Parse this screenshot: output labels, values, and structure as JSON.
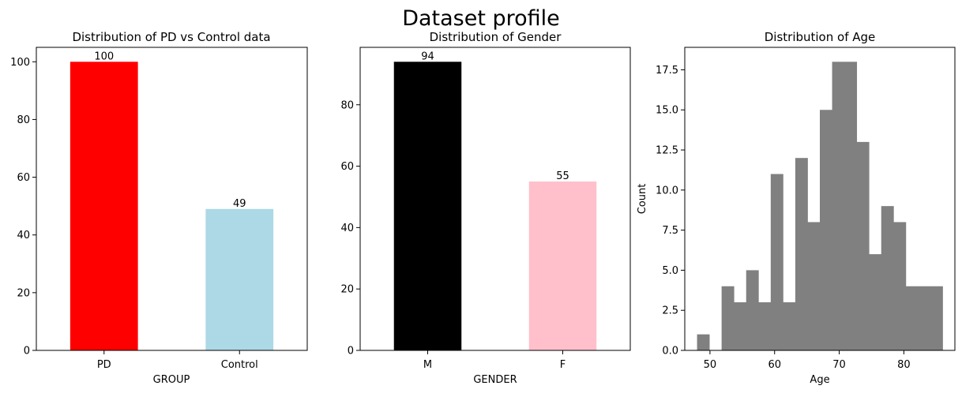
{
  "suptitle": "Dataset profile",
  "chart_data": [
    {
      "type": "bar",
      "title": "Distribution of PD vs Control data",
      "xlabel": "GROUP",
      "ylabel": "",
      "categories": [
        "PD",
        "Control"
      ],
      "values": [
        100,
        49
      ],
      "colors": [
        "#ff0000",
        "#add8e6"
      ],
      "data_labels": [
        "100",
        "49"
      ],
      "ylim": [
        0,
        105
      ],
      "yticks": [
        0,
        20,
        40,
        60,
        80,
        100
      ],
      "grid": false,
      "legend": "none"
    },
    {
      "type": "bar",
      "title": "Distribution of Gender",
      "xlabel": "GENDER",
      "ylabel": "",
      "categories": [
        "M",
        "F"
      ],
      "values": [
        94,
        55
      ],
      "colors": [
        "#000000",
        "#ffc0cb"
      ],
      "data_labels": [
        "94",
        "55"
      ],
      "ylim": [
        0,
        98.7
      ],
      "yticks": [
        0,
        20,
        40,
        60,
        80
      ],
      "grid": false,
      "legend": "none"
    },
    {
      "type": "histogram",
      "title": "Distribution of Age",
      "xlabel": "Age",
      "ylabel": "Count",
      "bin_edges": [
        48,
        49.9,
        51.8,
        53.7,
        55.6,
        57.5,
        59.4,
        61.3,
        63.2,
        65.1,
        67,
        68.9,
        70.8,
        72.7,
        74.6,
        76.5,
        78.4,
        80.3,
        82.2,
        84.1,
        86
      ],
      "counts": [
        1,
        0,
        4,
        3,
        5,
        3,
        11,
        3,
        12,
        8,
        15,
        18,
        18,
        13,
        6,
        9,
        8,
        4,
        4,
        4
      ],
      "color": "#808080",
      "xlim": [
        46.1,
        87.9
      ],
      "ylim": [
        0,
        18.9
      ],
      "xticks": [
        50,
        60,
        70,
        80
      ],
      "yticks": [
        0.0,
        2.5,
        5.0,
        7.5,
        10.0,
        12.5,
        15.0,
        17.5
      ],
      "ytick_labels": [
        "0.0",
        "2.5",
        "5.0",
        "7.5",
        "10.0",
        "12.5",
        "15.0",
        "17.5"
      ],
      "grid": false,
      "legend": "none"
    }
  ]
}
